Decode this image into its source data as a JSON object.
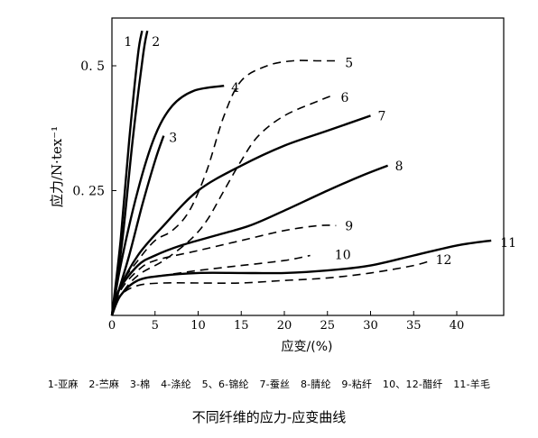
{
  "chart_data": {
    "type": "line",
    "title": "不同纤维的应力-应变曲线",
    "xlabel": "应变/(%)",
    "ylabel": "应力/N·tex⁻¹",
    "xlim": [
      0,
      45
    ],
    "ylim": [
      0,
      0.58
    ],
    "xticks": [
      0,
      5,
      10,
      15,
      20,
      25,
      30,
      35,
      40
    ],
    "yticks": [
      0.25,
      0.5
    ],
    "ytick_labels": [
      "0. 25",
      "0. 5"
    ],
    "grid": false,
    "series": [
      {
        "name": "1",
        "style": "solid",
        "points": [
          [
            0,
            0
          ],
          [
            1,
            0.15
          ],
          [
            2,
            0.35
          ],
          [
            3,
            0.52
          ],
          [
            3.5,
            0.57
          ]
        ]
      },
      {
        "name": "2",
        "style": "solid",
        "points": [
          [
            0,
            0
          ],
          [
            1.2,
            0.15
          ],
          [
            2.4,
            0.35
          ],
          [
            3.6,
            0.52
          ],
          [
            4.1,
            0.57
          ]
        ]
      },
      {
        "name": "3",
        "style": "solid",
        "points": [
          [
            0,
            0
          ],
          [
            0.8,
            0.05
          ],
          [
            2,
            0.12
          ],
          [
            3.5,
            0.22
          ],
          [
            5,
            0.31
          ],
          [
            6,
            0.36
          ]
        ]
      },
      {
        "name": "4",
        "style": "solid",
        "points": [
          [
            0,
            0
          ],
          [
            1,
            0.1
          ],
          [
            3,
            0.25
          ],
          [
            5,
            0.36
          ],
          [
            7,
            0.42
          ],
          [
            9.5,
            0.45
          ],
          [
            13,
            0.46
          ]
        ]
      },
      {
        "name": "5",
        "style": "dashed",
        "points": [
          [
            0,
            0
          ],
          [
            1,
            0.06
          ],
          [
            3,
            0.11
          ],
          [
            5,
            0.15
          ],
          [
            7,
            0.17
          ],
          [
            9,
            0.21
          ],
          [
            11,
            0.29
          ],
          [
            13,
            0.4
          ],
          [
            15,
            0.47
          ],
          [
            18,
            0.5
          ],
          [
            21,
            0.51
          ],
          [
            24,
            0.51
          ],
          [
            26,
            0.51
          ]
        ]
      },
      {
        "name": "6",
        "style": "dashed",
        "points": [
          [
            0,
            0
          ],
          [
            1,
            0.04
          ],
          [
            3,
            0.08
          ],
          [
            6,
            0.11
          ],
          [
            9,
            0.15
          ],
          [
            11,
            0.19
          ],
          [
            13,
            0.25
          ],
          [
            15,
            0.31
          ],
          [
            17,
            0.36
          ],
          [
            20,
            0.4
          ],
          [
            24,
            0.43
          ],
          [
            25.5,
            0.44
          ]
        ]
      },
      {
        "name": "7",
        "style": "solid",
        "points": [
          [
            0,
            0
          ],
          [
            0.8,
            0.05
          ],
          [
            3,
            0.12
          ],
          [
            6,
            0.18
          ],
          [
            10,
            0.25
          ],
          [
            15,
            0.3
          ],
          [
            20,
            0.34
          ],
          [
            25,
            0.37
          ],
          [
            30,
            0.4
          ]
        ]
      },
      {
        "name": "8",
        "style": "solid",
        "points": [
          [
            0,
            0
          ],
          [
            0.8,
            0.05
          ],
          [
            3,
            0.1
          ],
          [
            5,
            0.12
          ],
          [
            8,
            0.14
          ],
          [
            12,
            0.16
          ],
          [
            16,
            0.18
          ],
          [
            20,
            0.21
          ],
          [
            25,
            0.25
          ],
          [
            29,
            0.28
          ],
          [
            32,
            0.3
          ]
        ]
      },
      {
        "name": "9",
        "style": "dashed",
        "points": [
          [
            0,
            0
          ],
          [
            1,
            0.05
          ],
          [
            3,
            0.09
          ],
          [
            5,
            0.11
          ],
          [
            10,
            0.13
          ],
          [
            15,
            0.15
          ],
          [
            20,
            0.17
          ],
          [
            24,
            0.18
          ],
          [
            26,
            0.18
          ]
        ]
      },
      {
        "name": "10",
        "style": "dashed",
        "points": [
          [
            0,
            0
          ],
          [
            1,
            0.04
          ],
          [
            3,
            0.07
          ],
          [
            6,
            0.08
          ],
          [
            10,
            0.09
          ],
          [
            15,
            0.1
          ],
          [
            20,
            0.11
          ],
          [
            23,
            0.12
          ]
        ]
      },
      {
        "name": "11",
        "style": "solid",
        "points": [
          [
            0,
            0
          ],
          [
            1,
            0.04
          ],
          [
            3,
            0.07
          ],
          [
            6,
            0.08
          ],
          [
            10,
            0.085
          ],
          [
            15,
            0.085
          ],
          [
            20,
            0.085
          ],
          [
            25,
            0.09
          ],
          [
            30,
            0.1
          ],
          [
            35,
            0.12
          ],
          [
            40,
            0.14
          ],
          [
            44,
            0.15
          ]
        ]
      },
      {
        "name": "12",
        "style": "dashed",
        "points": [
          [
            0,
            0
          ],
          [
            1,
            0.04
          ],
          [
            3,
            0.06
          ],
          [
            6,
            0.065
          ],
          [
            10,
            0.065
          ],
          [
            15,
            0.065
          ],
          [
            20,
            0.07
          ],
          [
            25,
            0.075
          ],
          [
            30,
            0.085
          ],
          [
            35,
            0.1
          ],
          [
            37,
            0.11
          ]
        ]
      }
    ],
    "legend_text": [
      "1-亚麻",
      "2-苎麻",
      "3-棉",
      "4-涤纶",
      "5、6-锦纶",
      "7-蚕丝",
      "8-腈纶",
      "9-粘纤",
      "10、12-醋纤",
      "11-羊毛"
    ]
  }
}
